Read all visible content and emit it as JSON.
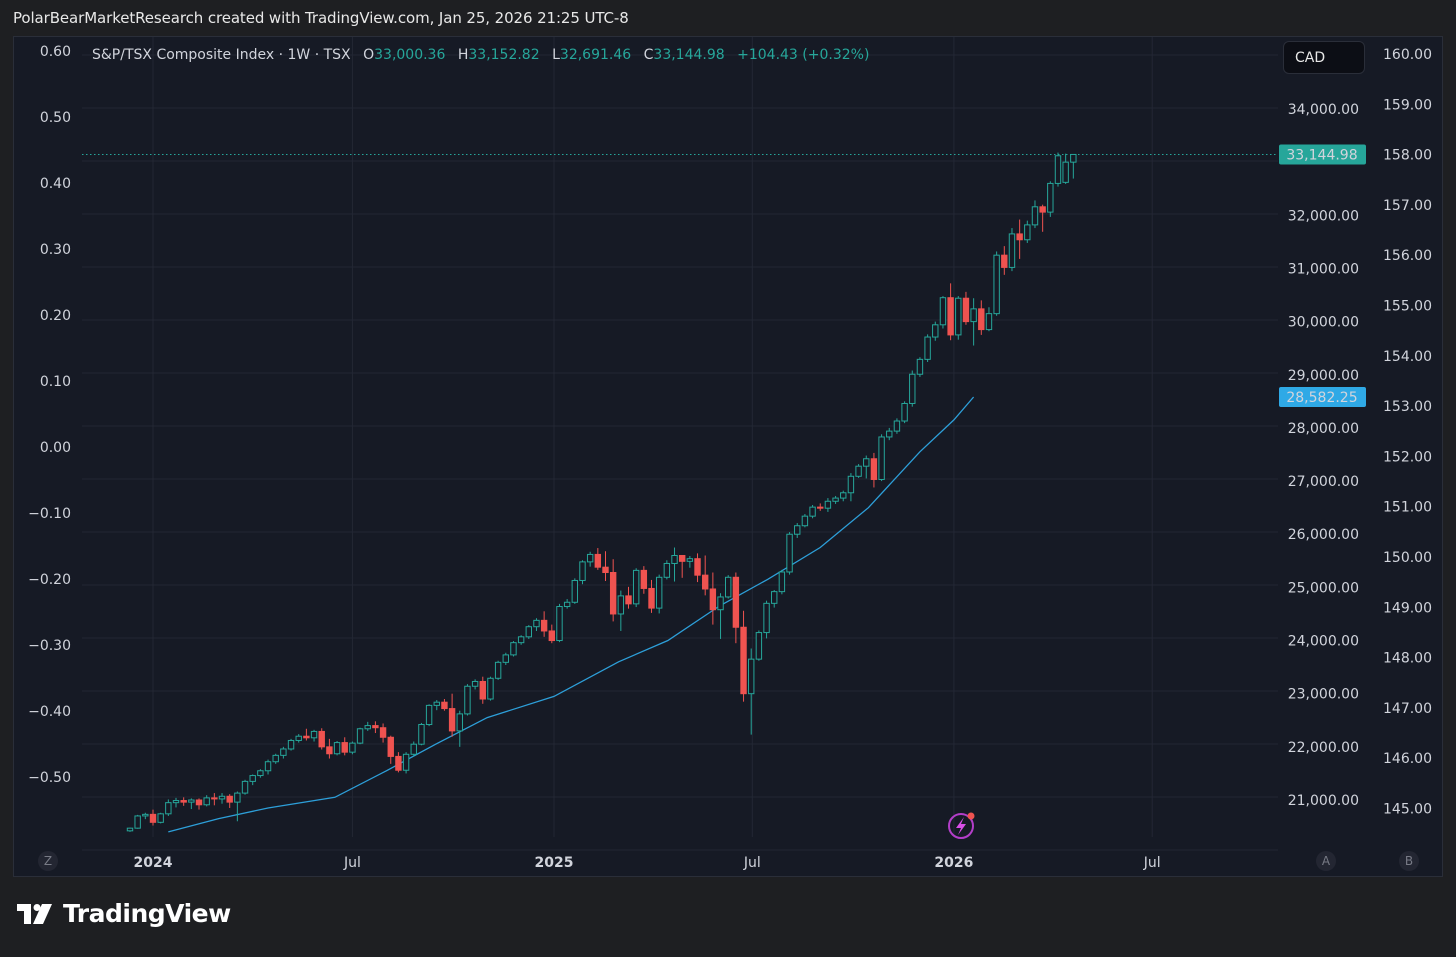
{
  "caption": "PolarBearMarketResearch created with TradingView.com, Jan 25, 2026 21:25 UTC-8",
  "brand": {
    "name": "TradingView",
    "icon": "tradingview-logo"
  },
  "toolbar": {
    "currency": "CAD"
  },
  "corners": {
    "left": "Z",
    "auto": "A",
    "bottom_right": "B"
  },
  "colors": {
    "up": "#26a69a",
    "down": "#ef5350",
    "ma": "#2d9fd9",
    "last_price_bg": "#26a69a",
    "ma_label_bg": "#2fa9e6",
    "background": "#161a25"
  },
  "legend": {
    "symbol": "S&P/TSX Composite Index · 1W · TSX",
    "o_label": "O",
    "o_value": "33,000.36",
    "h_label": "H",
    "h_value": "33,152.82",
    "l_label": "L",
    "l_value": "32,691.46",
    "c_label": "C",
    "c_value": "33,144.98",
    "change": "+104.43 (+0.32%)"
  },
  "chart_data": {
    "type": "candlestick",
    "symbol": "S&P/TSX Composite Index",
    "interval": "1W",
    "exchange": "TSX",
    "price_axis": {
      "ticks": [
        "34,000.00",
        "32,000.00",
        "31,000.00",
        "30,000.00",
        "29,000.00",
        "28,000.00",
        "27,000.00",
        "26,000.00",
        "25,000.00",
        "24,000.00",
        "23,000.00",
        "22,000.00",
        "21,000.00"
      ],
      "tick_values": [
        34000,
        32000,
        31000,
        30000,
        29000,
        28000,
        27000,
        26000,
        25000,
        24000,
        23000,
        22000,
        21000
      ]
    },
    "left_axis": {
      "ticks": [
        "0.60",
        "0.50",
        "0.40",
        "0.30",
        "0.20",
        "0.10",
        "0.00",
        "−0.10",
        "−0.20",
        "−0.30",
        "−0.40",
        "−0.50"
      ]
    },
    "right_axis": {
      "ticks": [
        "160.00",
        "159.00",
        "158.00",
        "157.00",
        "156.00",
        "155.00",
        "154.00",
        "153.00",
        "152.00",
        "151.00",
        "150.00",
        "149.00",
        "148.00",
        "147.00",
        "146.00",
        "145.00"
      ]
    },
    "time_axis": [
      {
        "label": "2024",
        "bold": true,
        "x": "2024-01-01"
      },
      {
        "label": "Jul",
        "bold": false,
        "x": "2024-07-01"
      },
      {
        "label": "2025",
        "bold": true,
        "x": "2025-01-01"
      },
      {
        "label": "Jul",
        "bold": false,
        "x": "2025-07-01"
      },
      {
        "label": "2026",
        "bold": true,
        "x": "2026-01-01"
      },
      {
        "label": "Jul",
        "bold": false,
        "x": "2026-07-01"
      }
    ],
    "last_price": {
      "value": 33144.98,
      "label": "33,144.98"
    },
    "moving_average": {
      "last_value": 28582.25,
      "label": "28,582.25",
      "points": [
        [
          "2024-01-15",
          20400
        ],
        [
          "2024-03-01",
          20650
        ],
        [
          "2024-04-15",
          20850
        ],
        [
          "2024-06-15",
          21050
        ],
        [
          "2024-08-01",
          21550
        ],
        [
          "2024-09-15",
          22050
        ],
        [
          "2024-11-01",
          22550
        ],
        [
          "2025-01-01",
          22950
        ],
        [
          "2025-03-01",
          23600
        ],
        [
          "2025-04-15",
          24000
        ],
        [
          "2025-06-01",
          24650
        ],
        [
          "2025-07-15",
          25150
        ],
        [
          "2025-09-01",
          25750
        ],
        [
          "2025-10-15",
          26500
        ],
        [
          "2025-12-01",
          27550
        ],
        [
          "2026-01-01",
          28150
        ],
        [
          "2026-01-19",
          28582
        ]
      ]
    },
    "candles": [
      [
        "2023-12-11",
        20420,
        20480,
        20400,
        20470
      ],
      [
        "2023-12-18",
        20470,
        20720,
        20460,
        20700
      ],
      [
        "2023-12-25",
        20700,
        20760,
        20640,
        20730
      ],
      [
        "2024-01-01",
        20730,
        20820,
        20520,
        20580
      ],
      [
        "2024-01-08",
        20580,
        20760,
        20560,
        20740
      ],
      [
        "2024-01-15",
        20740,
        21010,
        20700,
        20950
      ],
      [
        "2024-01-22",
        20950,
        21040,
        20860,
        20990
      ],
      [
        "2024-01-29",
        20990,
        21050,
        20890,
        20960
      ],
      [
        "2024-02-05",
        20960,
        21030,
        20830,
        21000
      ],
      [
        "2024-02-12",
        21000,
        21030,
        20820,
        20910
      ],
      [
        "2024-02-19",
        20910,
        21090,
        20880,
        21040
      ],
      [
        "2024-02-26",
        21040,
        21130,
        20900,
        21020
      ],
      [
        "2024-03-04",
        21020,
        21130,
        20930,
        21070
      ],
      [
        "2024-03-11",
        21070,
        21110,
        20850,
        20960
      ],
      [
        "2024-03-18",
        20960,
        21160,
        20600,
        21130
      ],
      [
        "2024-03-25",
        21130,
        21380,
        21100,
        21350
      ],
      [
        "2024-04-01",
        21350,
        21480,
        21280,
        21460
      ],
      [
        "2024-04-08",
        21460,
        21580,
        21420,
        21550
      ],
      [
        "2024-04-15",
        21550,
        21760,
        21480,
        21720
      ],
      [
        "2024-04-22",
        21720,
        21870,
        21680,
        21840
      ],
      [
        "2024-04-29",
        21840,
        22000,
        21780,
        21960
      ],
      [
        "2024-05-06",
        21960,
        22150,
        21930,
        22120
      ],
      [
        "2024-05-13",
        22120,
        22240,
        22080,
        22200
      ],
      [
        "2024-05-20",
        22200,
        22340,
        22120,
        22170
      ],
      [
        "2024-05-27",
        22170,
        22320,
        22100,
        22290
      ],
      [
        "2024-06-03",
        22290,
        22350,
        21950,
        22000
      ],
      [
        "2024-06-10",
        22000,
        22150,
        21780,
        21870
      ],
      [
        "2024-06-17",
        21870,
        22110,
        21840,
        22080
      ],
      [
        "2024-06-24",
        22080,
        22180,
        21840,
        21900
      ],
      [
        "2024-07-01",
        21900,
        22100,
        21860,
        22070
      ],
      [
        "2024-07-08",
        22070,
        22360,
        22050,
        22340
      ],
      [
        "2024-07-15",
        22340,
        22470,
        22300,
        22400
      ],
      [
        "2024-07-22",
        22400,
        22480,
        22260,
        22360
      ],
      [
        "2024-07-29",
        22360,
        22440,
        22080,
        22180
      ],
      [
        "2024-08-05",
        22180,
        22210,
        21680,
        21820
      ],
      [
        "2024-08-12",
        21820,
        21900,
        21520,
        21560
      ],
      [
        "2024-08-19",
        21560,
        21900,
        21500,
        21860
      ],
      [
        "2024-08-26",
        21860,
        22100,
        21820,
        22050
      ],
      [
        "2024-09-02",
        22050,
        22450,
        22030,
        22420
      ],
      [
        "2024-09-09",
        22420,
        22800,
        22390,
        22780
      ],
      [
        "2024-09-16",
        22780,
        22880,
        22690,
        22840
      ],
      [
        "2024-09-23",
        22840,
        22900,
        22680,
        22720
      ],
      [
        "2024-09-30",
        22720,
        23000,
        22190,
        22300
      ],
      [
        "2024-10-07",
        22300,
        22680,
        22000,
        22620
      ],
      [
        "2024-10-14",
        22620,
        23180,
        22590,
        23140
      ],
      [
        "2024-10-21",
        23140,
        23270,
        23080,
        23230
      ],
      [
        "2024-10-28",
        23230,
        23320,
        22810,
        22900
      ],
      [
        "2024-11-04",
        22900,
        23320,
        22870,
        23290
      ],
      [
        "2024-11-11",
        23290,
        23620,
        23260,
        23590
      ],
      [
        "2024-11-18",
        23590,
        23770,
        23540,
        23730
      ],
      [
        "2024-11-25",
        23730,
        23990,
        23700,
        23960
      ],
      [
        "2024-12-02",
        23960,
        24100,
        23920,
        24070
      ],
      [
        "2024-12-09",
        24070,
        24290,
        24030,
        24260
      ],
      [
        "2024-12-16",
        24260,
        24420,
        24180,
        24380
      ],
      [
        "2024-12-23",
        24380,
        24550,
        24070,
        24180
      ],
      [
        "2024-12-30",
        24180,
        24300,
        23950,
        24000
      ],
      [
        "2025-01-06",
        24000,
        24690,
        23970,
        24640
      ],
      [
        "2025-01-13",
        24640,
        24780,
        24600,
        24720
      ],
      [
        "2025-01-20",
        24720,
        25170,
        24690,
        25130
      ],
      [
        "2025-01-27",
        25130,
        25510,
        25060,
        25480
      ],
      [
        "2025-02-03",
        25480,
        25670,
        25390,
        25620
      ],
      [
        "2025-02-10",
        25620,
        25740,
        25330,
        25380
      ],
      [
        "2025-02-17",
        25380,
        25680,
        25120,
        25280
      ],
      [
        "2025-02-24",
        25280,
        25530,
        24360,
        24500
      ],
      [
        "2025-03-03",
        24500,
        24940,
        24180,
        24840
      ],
      [
        "2025-03-10",
        24840,
        25010,
        24600,
        24690
      ],
      [
        "2025-03-17",
        24690,
        25360,
        24630,
        25320
      ],
      [
        "2025-03-24",
        25320,
        25400,
        24880,
        24980
      ],
      [
        "2025-03-31",
        24980,
        25140,
        24520,
        24610
      ],
      [
        "2025-04-07",
        24610,
        25240,
        24510,
        25190
      ],
      [
        "2025-04-14",
        25190,
        25510,
        25150,
        25450
      ],
      [
        "2025-04-21",
        25450,
        25750,
        25110,
        25600
      ],
      [
        "2025-04-28",
        25600,
        25560,
        25180,
        25490
      ],
      [
        "2025-05-05",
        25490,
        25590,
        25370,
        25540
      ],
      [
        "2025-05-12",
        25540,
        25640,
        25100,
        25230
      ],
      [
        "2025-05-19",
        25230,
        25600,
        24850,
        24970
      ],
      [
        "2025-05-26",
        24970,
        25280,
        24300,
        24580
      ],
      [
        "2025-06-02",
        24580,
        24890,
        24030,
        24820
      ],
      [
        "2025-06-09",
        24820,
        25230,
        24790,
        25190
      ],
      [
        "2025-06-16",
        25190,
        25280,
        23950,
        24250
      ],
      [
        "2025-06-23",
        24250,
        24560,
        22850,
        23000
      ],
      [
        "2025-06-30",
        23000,
        23850,
        22230,
        23650
      ],
      [
        "2025-07-07",
        23650,
        24190,
        23620,
        24150
      ],
      [
        "2025-07-14",
        24150,
        24750,
        24040,
        24700
      ],
      [
        "2025-07-21",
        24700,
        24950,
        24620,
        24920
      ],
      [
        "2025-07-28",
        24920,
        25330,
        24870,
        25290
      ],
      [
        "2025-08-04",
        25290,
        26040,
        25240,
        26000
      ],
      [
        "2025-08-11",
        26000,
        26210,
        25930,
        26160
      ],
      [
        "2025-08-18",
        26160,
        26380,
        26130,
        26340
      ],
      [
        "2025-08-25",
        26340,
        26550,
        26300,
        26510
      ],
      [
        "2025-09-01",
        26510,
        26580,
        26440,
        26490
      ],
      [
        "2025-09-08",
        26490,
        26680,
        26420,
        26620
      ],
      [
        "2025-09-15",
        26620,
        26720,
        26570,
        26680
      ],
      [
        "2025-09-22",
        26680,
        26820,
        26620,
        26780
      ],
      [
        "2025-09-29",
        26780,
        27150,
        26620,
        27090
      ],
      [
        "2025-10-06",
        27090,
        27320,
        27060,
        27280
      ],
      [
        "2025-10-13",
        27280,
        27480,
        27050,
        27420
      ],
      [
        "2025-10-20",
        27420,
        27530,
        26880,
        27030
      ],
      [
        "2025-10-27",
        27030,
        27880,
        27000,
        27830
      ],
      [
        "2025-11-03",
        27830,
        28000,
        27770,
        27940
      ],
      [
        "2025-11-10",
        27940,
        28180,
        27890,
        28130
      ],
      [
        "2025-11-17",
        28130,
        28500,
        28090,
        28460
      ],
      [
        "2025-11-24",
        28460,
        29080,
        28400,
        29010
      ],
      [
        "2025-12-01",
        29010,
        29330,
        28960,
        29290
      ],
      [
        "2025-12-08",
        29290,
        29760,
        29240,
        29710
      ],
      [
        "2025-12-15",
        29710,
        30000,
        29640,
        29940
      ],
      [
        "2025-12-22",
        29940,
        30480,
        29870,
        30450
      ],
      [
        "2025-12-29",
        30450,
        30720,
        29650,
        29750
      ],
      [
        "2026-01-05",
        29750,
        30480,
        29660,
        30440
      ],
      [
        "2026-01-12",
        30440,
        30560,
        29940,
        30000
      ],
      [
        "2026-01-19",
        30000,
        30440,
        29550,
        30240
      ],
      [
        "2026-01-26",
        30240,
        30400,
        29750,
        29850
      ],
      [
        "2026-02-02",
        29850,
        30270,
        29820,
        30150
      ],
      [
        "2026-02-09",
        30150,
        31320,
        30110,
        31250
      ],
      [
        "2026-02-16",
        31250,
        31420,
        30880,
        31020
      ],
      [
        "2026-02-23",
        31020,
        31760,
        30950,
        31650
      ],
      [
        "2026-03-02",
        31650,
        31920,
        31180,
        31540
      ],
      [
        "2026-03-09",
        31540,
        31900,
        31480,
        31820
      ],
      [
        "2026-03-16",
        31820,
        32280,
        31760,
        32160
      ],
      [
        "2026-03-23",
        32160,
        32200,
        31690,
        32060
      ],
      [
        "2026-03-30",
        32060,
        32640,
        31970,
        32600
      ],
      [
        "2026-04-06",
        32600,
        33180,
        32540,
        33120
      ],
      [
        "2026-04-13",
        32620,
        33160,
        32590,
        33000
      ],
      [
        "2026-04-20",
        33000,
        33153,
        32691,
        33145
      ]
    ]
  }
}
